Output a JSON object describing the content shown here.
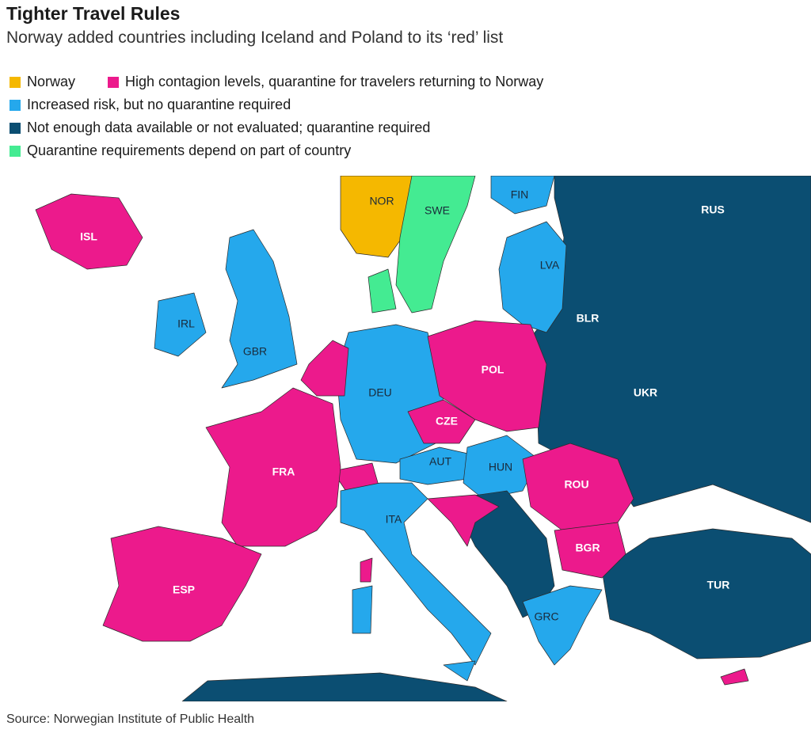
{
  "header": {
    "title": "Tighter Travel Rules",
    "subtitle": "Norway added countries including Iceland and Poland to its ‘red’ list"
  },
  "legend": {
    "items": [
      {
        "label": "Norway",
        "color": "#f5b800"
      },
      {
        "label": "High contagion levels, quarantine for travelers returning to Norway",
        "color": "#ec1a8c"
      },
      {
        "label": "Increased risk, but no quarantine required",
        "color": "#25a8ec"
      },
      {
        "label": "Not enough data available or not evaluated; quarantine required",
        "color": "#0b4e72"
      },
      {
        "label": "Quarantine requirements depend on part of country",
        "color": "#44eb92"
      }
    ]
  },
  "map": {
    "labels": [
      "ISL",
      "NOR",
      "SWE",
      "FIN",
      "RUS",
      "LVA",
      "IRL",
      "GBR",
      "BLR",
      "POL",
      "DEU",
      "UKR",
      "CZE",
      "AUT",
      "HUN",
      "FRA",
      "ROU",
      "ITA",
      "BGR",
      "ESP",
      "TUR",
      "GRC"
    ]
  },
  "footer": {
    "source": "Source: Norwegian Institute of Public Health"
  }
}
